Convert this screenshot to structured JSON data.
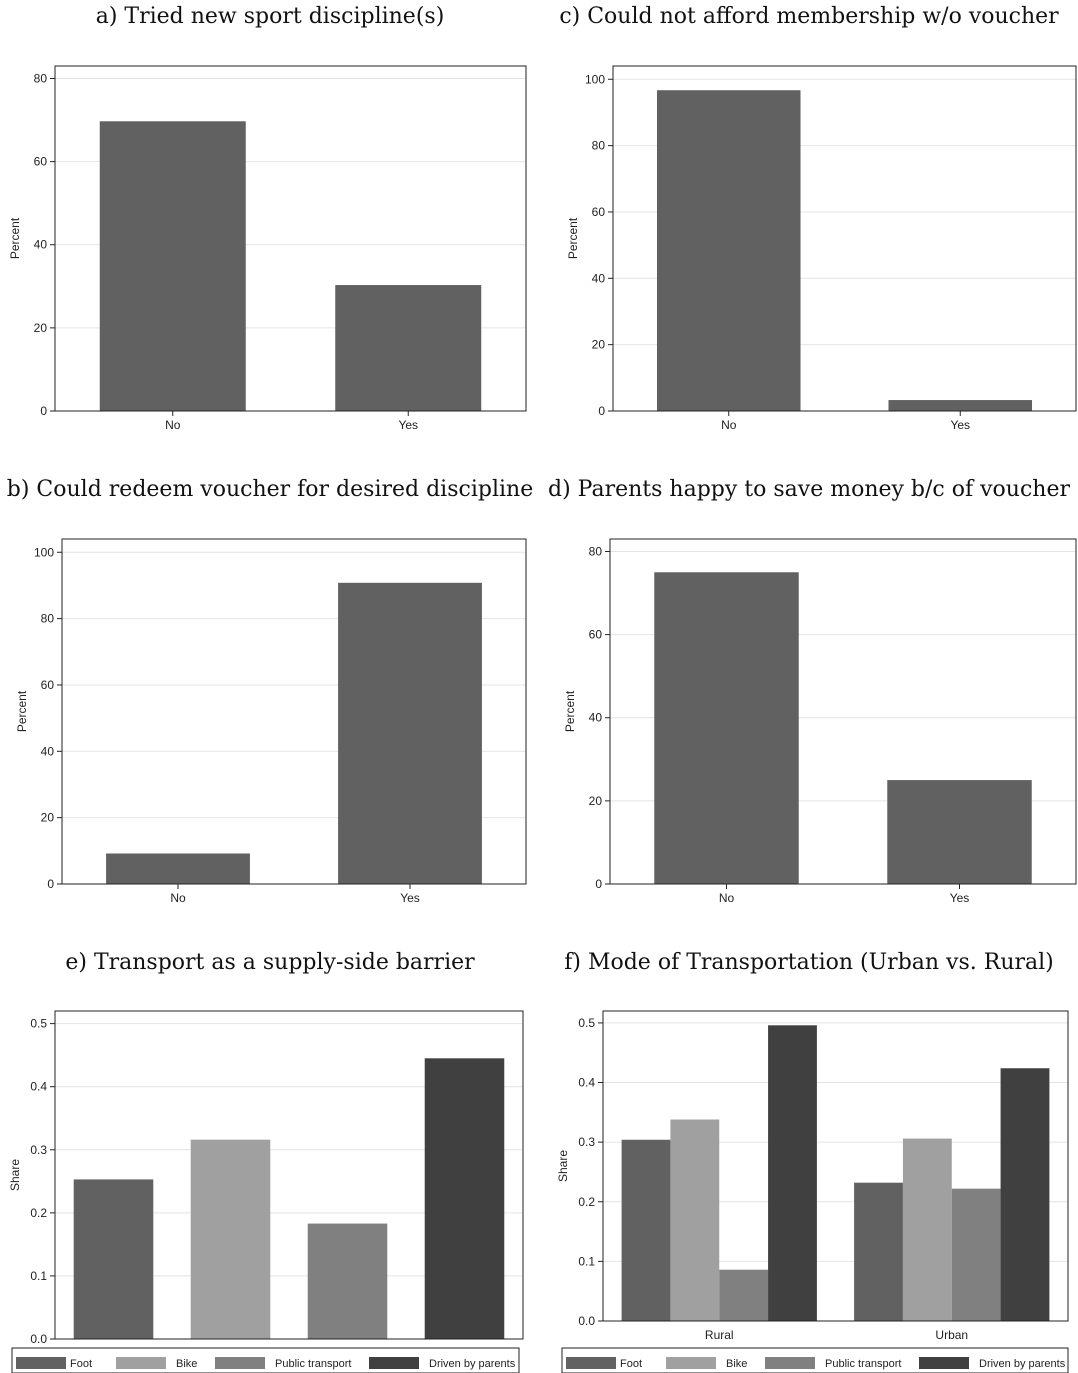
{
  "colors": {
    "bar": "#616161",
    "foot": "#616161",
    "bike": "#a0a0a0",
    "public_transport": "#808080",
    "driven_by_parents": "#404040",
    "grid": "#e4e4e4",
    "frame": "#222222"
  },
  "chart_data": [
    {
      "id": "a",
      "type": "bar",
      "title": "a) Tried new sport discipline(s)",
      "ylabel": "Percent",
      "categories": [
        "No",
        "Yes"
      ],
      "values": [
        69.7,
        30.3
      ],
      "ylim": [
        0,
        83
      ],
      "yticks": [
        "0",
        "20",
        "40",
        "60",
        "80"
      ],
      "ytick_values": [
        0,
        20,
        40,
        60,
        80
      ],
      "grid": true
    },
    {
      "id": "c",
      "type": "bar",
      "title": "c) Could not afford membership w/o voucher",
      "ylabel": "Percent",
      "categories": [
        "No",
        "Yes"
      ],
      "values": [
        96.7,
        3.3
      ],
      "ylim": [
        0,
        104
      ],
      "yticks": [
        "0",
        "20",
        "40",
        "60",
        "80",
        "100"
      ],
      "ytick_values": [
        0,
        20,
        40,
        60,
        80,
        100
      ],
      "grid": true
    },
    {
      "id": "b",
      "type": "bar",
      "title": "b) Could redeem voucher for desired discipline",
      "ylabel": "Percent",
      "categories": [
        "No",
        "Yes"
      ],
      "values": [
        9.2,
        90.8
      ],
      "ylim": [
        0,
        104
      ],
      "yticks": [
        "0",
        "20",
        "40",
        "60",
        "80",
        "100"
      ],
      "ytick_values": [
        0,
        20,
        40,
        60,
        80,
        100
      ],
      "grid": true
    },
    {
      "id": "d",
      "type": "bar",
      "title": "d) Parents happy to save money b/c of voucher",
      "ylabel": "Percent",
      "categories": [
        "No",
        "Yes"
      ],
      "values": [
        75,
        25
      ],
      "ylim": [
        0,
        83
      ],
      "yticks": [
        "0",
        "20",
        "40",
        "60",
        "80"
      ],
      "ytick_values": [
        0,
        20,
        40,
        60,
        80
      ],
      "grid": true
    },
    {
      "id": "e",
      "type": "bar",
      "title": "e) Transport as a supply-side barrier",
      "ylabel": "Share",
      "series": [
        {
          "name": "Foot",
          "values": [
            0.253
          ]
        },
        {
          "name": "Bike",
          "values": [
            0.316
          ]
        },
        {
          "name": "Public transport",
          "values": [
            0.183
          ]
        },
        {
          "name": "Driven by parents",
          "values": [
            0.445
          ]
        }
      ],
      "ylim": [
        0,
        0.52
      ],
      "yticks": [
        "0.0",
        "0.1",
        "0.2",
        "0.3",
        "0.4",
        "0.5"
      ],
      "ytick_values": [
        0,
        0.1,
        0.2,
        0.3,
        0.4,
        0.5
      ],
      "grid": true,
      "legend": {
        "position": "bottom",
        "items": [
          "Foot",
          "Bike",
          "Public transport",
          "Driven by parents"
        ]
      }
    },
    {
      "id": "f",
      "type": "bar",
      "title": "f) Mode of Transportation (Urban vs. Rural)",
      "ylabel": "Share",
      "categories": [
        "Rural",
        "Urban"
      ],
      "series": [
        {
          "name": "Foot",
          "values": [
            0.304,
            0.232
          ]
        },
        {
          "name": "Bike",
          "values": [
            0.338,
            0.306
          ]
        },
        {
          "name": "Public transport",
          "values": [
            0.086,
            0.222
          ]
        },
        {
          "name": "Driven by parents",
          "values": [
            0.496,
            0.424
          ]
        }
      ],
      "ylim": [
        0,
        0.52
      ],
      "yticks": [
        "0.0",
        "0.1",
        "0.2",
        "0.3",
        "0.4",
        "0.5"
      ],
      "ytick_values": [
        0,
        0.1,
        0.2,
        0.3,
        0.4,
        0.5
      ],
      "grid": true,
      "legend": {
        "position": "bottom",
        "items": [
          "Foot",
          "Bike",
          "Public transport",
          "Driven by parents"
        ]
      }
    }
  ]
}
